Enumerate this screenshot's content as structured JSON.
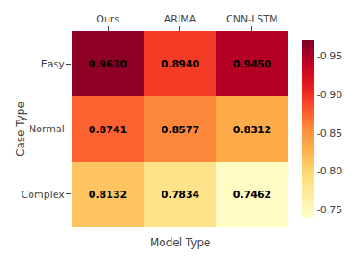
{
  "chart_data": {
    "type": "heatmap",
    "categories": [
      "Ours",
      "ARIMA",
      "CNN-LSTM"
    ],
    "rows": [
      "Easy",
      "Normal",
      "Complex"
    ],
    "values": [
      [
        0.963,
        0.894,
        0.945
      ],
      [
        0.8741,
        0.8577,
        0.8312
      ],
      [
        0.8132,
        0.7834,
        0.7462
      ]
    ],
    "value_labels": [
      [
        "0.9630",
        "0.8940",
        "0.9450"
      ],
      [
        "0.8741",
        "0.8577",
        "0.8312"
      ],
      [
        "0.8132",
        "0.7834",
        "0.7462"
      ]
    ],
    "data_labels": true,
    "xlabel": "Model Type",
    "ylabel": "Case Type",
    "color": "YlOrRd",
    "color_range": [
      0.74,
      0.97
    ],
    "color_ticks": [
      {
        "value": 0.75,
        "label": "-0.75"
      },
      {
        "value": 0.8,
        "label": "-0.80"
      },
      {
        "value": 0.85,
        "label": "-0.85"
      },
      {
        "value": 0.9,
        "label": "-0.90"
      },
      {
        "value": 0.95,
        "label": "-0.95"
      }
    ],
    "grid": false
  }
}
